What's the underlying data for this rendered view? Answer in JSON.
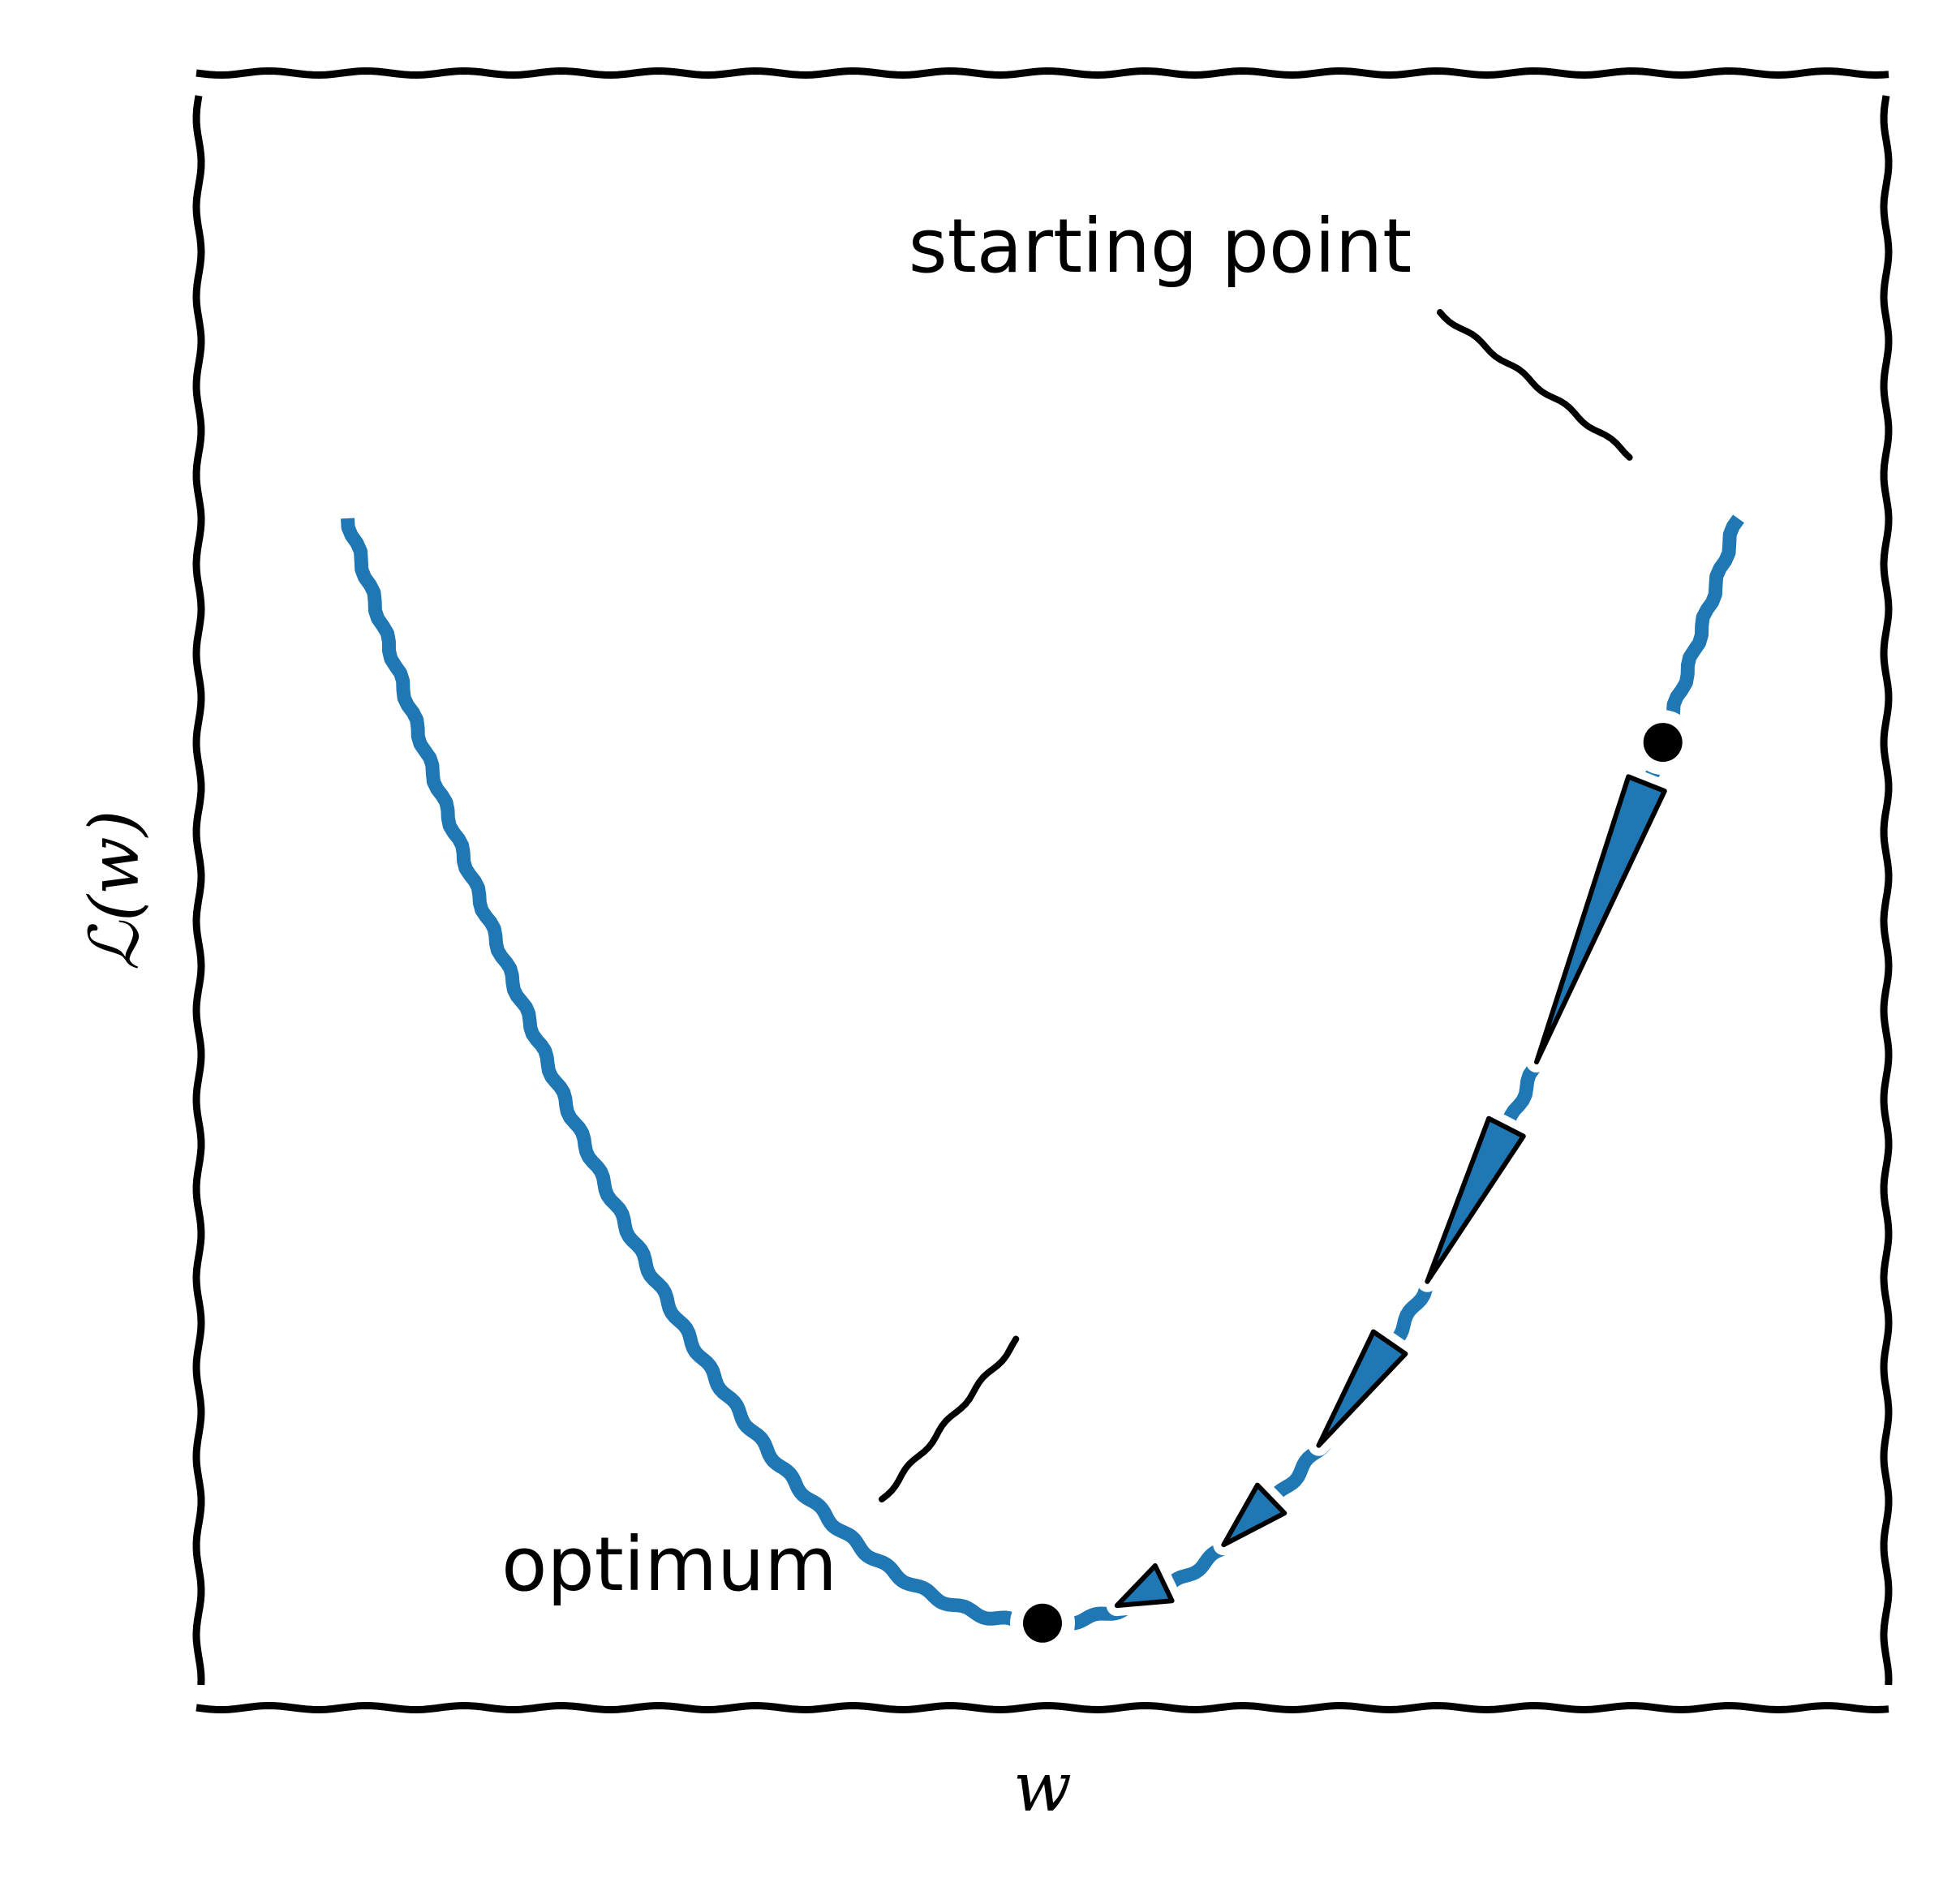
{
  "chart_data": {
    "type": "line",
    "style": "xkcd",
    "xlabel": "w",
    "ylabel": "ℒ(w)",
    "xlim": [
      -3.4,
      3.4
    ],
    "ylim": [
      -0.6,
      11.0
    ],
    "xticks": [],
    "yticks": [],
    "grid": false,
    "colors": {
      "curve": "#1f77b4",
      "arrow_fill": "#1f77b4",
      "ink": "#000000"
    },
    "series": [
      {
        "function": "w^2",
        "x": [
          -2.8,
          -2.4,
          -2.0,
          -1.6,
          -1.2,
          -0.8,
          -0.4,
          0.0,
          0.4,
          0.8,
          1.2,
          1.6,
          2.0,
          2.4,
          2.8
        ],
        "y": [
          7.84,
          5.76,
          4.0,
          2.56,
          1.44,
          0.64,
          0.16,
          0.0,
          0.16,
          0.64,
          1.44,
          2.56,
          4.0,
          5.76,
          7.84
        ]
      }
    ],
    "gradient_steps": [
      {
        "from": [
          2.5,
          6.25
        ],
        "to": [
          1.95,
          3.8
        ]
      },
      {
        "from": [
          1.95,
          3.8
        ],
        "to": [
          1.5,
          2.25
        ]
      },
      {
        "from": [
          1.5,
          2.25
        ],
        "to": [
          1.05,
          1.1
        ]
      },
      {
        "from": [
          1.05,
          1.1
        ],
        "to": [
          0.65,
          0.42
        ]
      },
      {
        "from": [
          0.65,
          0.42
        ],
        "to": [
          0.2,
          0.04
        ]
      }
    ],
    "points": [
      {
        "label": "starting point",
        "x": 2.5,
        "y": 6.25
      },
      {
        "label": "optimum",
        "x": 0.0,
        "y": 0.0
      }
    ]
  }
}
